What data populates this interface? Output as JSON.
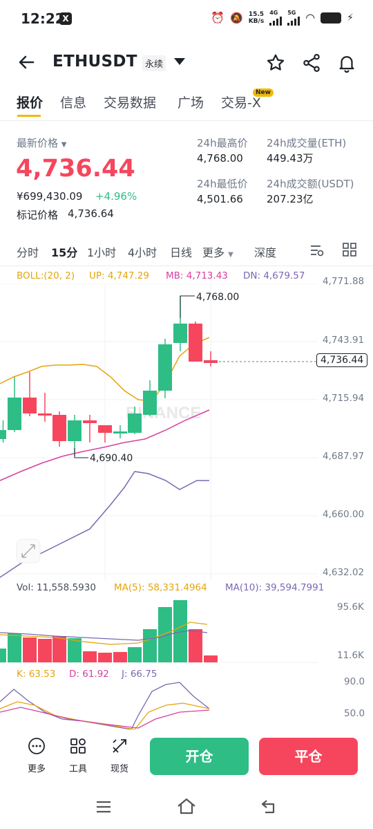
{
  "status": {
    "time": "12:22",
    "speed_value": "15.5",
    "speed_unit": "KB/s",
    "net1": "4G",
    "net2": "5G"
  },
  "header": {
    "symbol": "ETHUSDT",
    "contract_type": "永续"
  },
  "tabs": [
    {
      "label": "报价",
      "active": true
    },
    {
      "label": "信息"
    },
    {
      "label": "交易数据"
    },
    {
      "label": "广场"
    },
    {
      "label": "交易-X",
      "badge": "New"
    }
  ],
  "price": {
    "last_label": "最新价格",
    "last": "4,736.44",
    "cny": "¥699,430.09",
    "change": "+4.96%",
    "mark_label": "标记价格",
    "mark": "4,736.64",
    "high_label": "24h最高价",
    "high": "4,768.00",
    "low_label": "24h最低价",
    "low": "4,501.66",
    "vol_label": "24h成交量(ETH)",
    "vol": "449.43万",
    "turnover_label": "24h成交额(USDT)",
    "turnover": "207.23亿"
  },
  "intervals": [
    "分时",
    "15分",
    "1小时",
    "4小时",
    "日线",
    "更多",
    "深度"
  ],
  "active_interval": "15分",
  "chart": {
    "boll": {
      "label": "BOLL:(20, 2)",
      "up": "UP: 4,747.29",
      "mb": "MB: 4,713.43",
      "dn": "DN: 4,679.57"
    },
    "axis": [
      "4,771.88",
      "4,743.91",
      "4,715.94",
      "4,687.97",
      "4,660.00",
      "4,632.02"
    ],
    "current": "4,736.44",
    "high_mark": "4,768.00",
    "low_mark": "4,690.40",
    "watermark": "BINANCE",
    "vol": {
      "label": "Vol: 11,558.5930",
      "ma5": "MA(5): 58,331.4964",
      "ma10": "MA(10): 39,594.7991",
      "axis_top": "95.6K",
      "axis_bottom": "11.6K"
    },
    "kdj": {
      "k": "K: 63.53",
      "d": "D: 61.92",
      "j": "J: 66.75",
      "axis_top": "90.0",
      "axis_bottom": "50.0"
    },
    "colors": {
      "up": "#2ebd85",
      "down": "#f6465d",
      "boll_up": "#e5a50a",
      "boll_mb": "#d6409f",
      "boll_dn": "#7a67b3"
    }
  },
  "bottom": {
    "more": "更多",
    "tools": "工具",
    "spot": "现货",
    "open": "开仓",
    "close": "平仓"
  }
}
